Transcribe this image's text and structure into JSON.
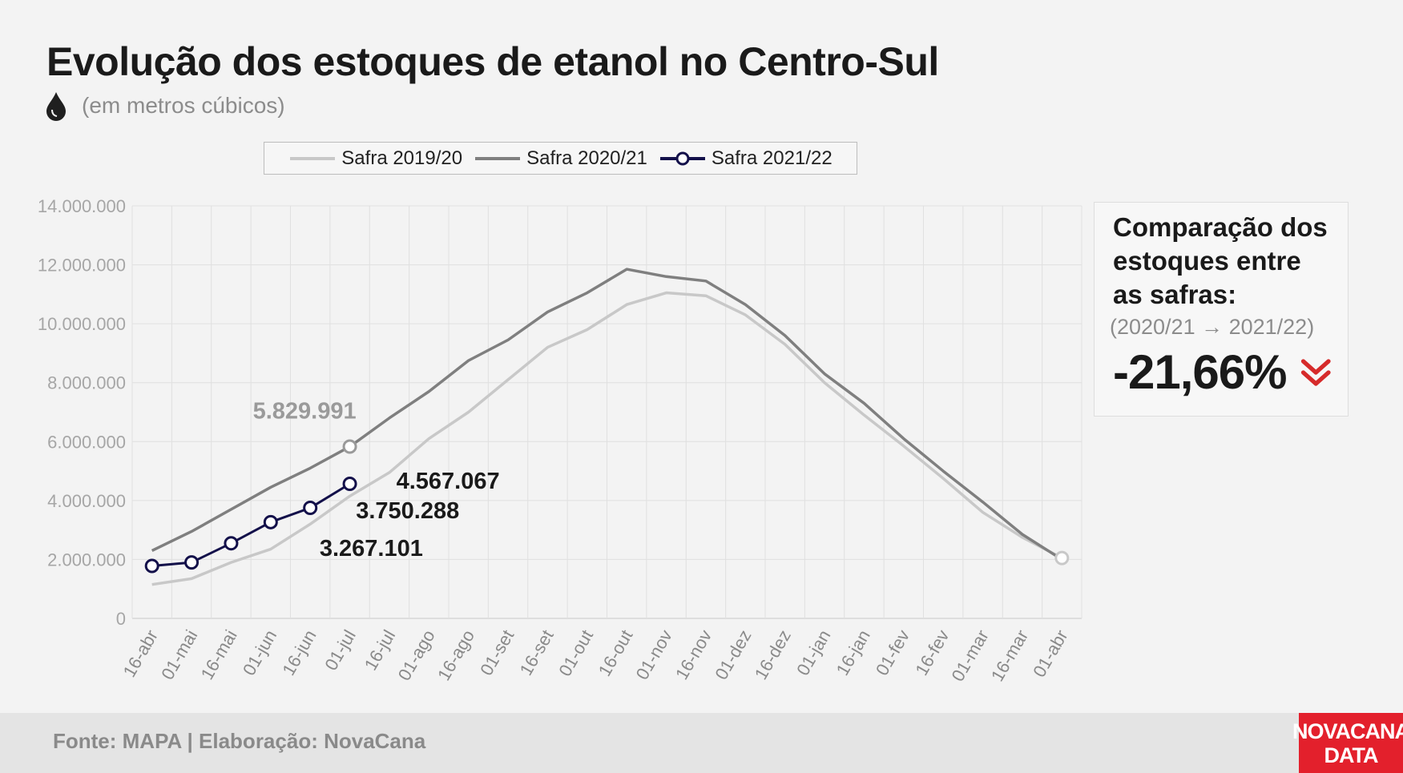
{
  "header": {
    "title": "Evolução dos estoques de etanol no Centro-Sul",
    "subtitle": "(em metros cúbicos)",
    "icon": "drop-icon"
  },
  "legend": {
    "items": [
      {
        "label": "Safra 2019/20",
        "color": "#c8c8c8"
      },
      {
        "label": "Safra 2020/21",
        "color": "#7f7f7f"
      },
      {
        "label": "Safra 2021/22",
        "color": "#13104a"
      }
    ]
  },
  "comparison": {
    "title_lines": [
      "Comparação dos",
      "estoques entre",
      "as safras:"
    ],
    "period": "(2020/21 → 2021/22)",
    "value": "-21,66%",
    "icon": "double-chevron-down-icon",
    "icon_color": "#d62b2b"
  },
  "footer": {
    "source": "Fonte: MAPA  | Elaboração: NovaCana",
    "logo_line1": "NOVACANA",
    "logo_line2": "DATA"
  },
  "chart_data": {
    "type": "line",
    "title": "Evolução dos estoques de etanol no Centro-Sul",
    "ylabel": "",
    "xlabel": "",
    "ylim": [
      0,
      14000000
    ],
    "yticks": [
      "0",
      "2.000.000",
      "4.000.000",
      "6.000.000",
      "8.000.000",
      "10.000.000",
      "12.000.000",
      "14.000.000"
    ],
    "ytick_values": [
      0,
      2000000,
      4000000,
      6000000,
      8000000,
      10000000,
      12000000,
      14000000
    ],
    "grid": true,
    "legend_position": "top",
    "categories": [
      "16-abr",
      "01-mai",
      "16-mai",
      "01-jun",
      "16-jun",
      "01-jul",
      "16-jul",
      "01-ago",
      "16-ago",
      "01-set",
      "16-set",
      "01-out",
      "16-out",
      "01-nov",
      "16-nov",
      "01-dez",
      "16-dez",
      "01-jan",
      "16-jan",
      "01-fev",
      "16-fev",
      "01-mar",
      "16-mar",
      "01-abr"
    ],
    "series": [
      {
        "name": "Safra 2019/20",
        "color": "#c8c8c8",
        "markers": false,
        "values": [
          1150000,
          1350000,
          1900000,
          2350000,
          3200000,
          4150000,
          4950000,
          6100000,
          7000000,
          8100000,
          9200000,
          9800000,
          10650000,
          11050000,
          10950000,
          10300000,
          9300000,
          8000000,
          6900000,
          5850000,
          4750000,
          3600000,
          2750000,
          2050000
        ]
      },
      {
        "name": "Safra 2020/21",
        "color": "#7f7f7f",
        "markers": false,
        "values": [
          2300000,
          2950000,
          3700000,
          4450000,
          5100000,
          5829991,
          6800000,
          7700000,
          8750000,
          9450000,
          10400000,
          11050000,
          11850000,
          11600000,
          11450000,
          10650000,
          9600000,
          8300000,
          7300000,
          6100000,
          5000000,
          3950000,
          2850000,
          2000000
        ]
      },
      {
        "name": "Safra 2021/22",
        "color": "#13104a",
        "markers": true,
        "values": [
          1780000,
          1900000,
          2550000,
          3267101,
          3750288,
          4567067,
          null,
          null,
          null,
          null,
          null,
          null,
          null,
          null,
          null,
          null,
          null,
          null,
          null,
          null,
          null,
          null,
          null,
          null
        ]
      }
    ],
    "annotations": [
      {
        "text": "5.829.991",
        "category": "01-jul",
        "series": "Safra 2020/21",
        "value": 5829991,
        "color": "#9a9a9a"
      },
      {
        "text": "4.567.067",
        "category": "01-jul",
        "series": "Safra 2021/22",
        "value": 4567067,
        "color": "#1a1a1a"
      },
      {
        "text": "3.750.288",
        "category": "16-jun",
        "series": "Safra 2021/22",
        "value": 3750288,
        "color": "#1a1a1a"
      },
      {
        "text": "3.267.101",
        "category": "01-jun",
        "series": "Safra 2021/22",
        "value": 3267101,
        "color": "#1a1a1a"
      }
    ],
    "highlight_markers": [
      {
        "series": "Safra 2020/21",
        "category": "01-jul",
        "value": 5829991,
        "color": "#9a9a9a"
      },
      {
        "series": "Safra 2019/20",
        "category": "01-abr",
        "value": 2050000,
        "color": "#c8c8c8"
      }
    ]
  }
}
